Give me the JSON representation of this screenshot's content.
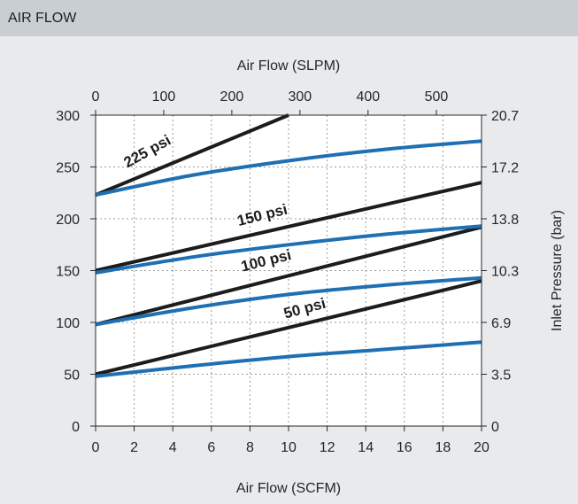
{
  "panel": {
    "title": "AIR FLOW"
  },
  "chart_data": {
    "type": "line",
    "title": "",
    "xlabel": "Air Flow (SCFM)",
    "x2label": "Air Flow (SLPM)",
    "ylabel": "",
    "y2label": "Inlet Pressure (bar)",
    "xlim": [
      0,
      20
    ],
    "ylim": [
      0,
      300
    ],
    "x_ticks": [
      "0",
      "2",
      "4",
      "6",
      "8",
      "10",
      "12",
      "14",
      "16",
      "18",
      "20"
    ],
    "y_ticks": [
      "0",
      "50",
      "100",
      "150",
      "200",
      "250",
      "300"
    ],
    "x2_ticks": [
      {
        "label": "0",
        "x": 0
      },
      {
        "label": "100",
        "x": 3.53
      },
      {
        "label": "200",
        "x": 7.06
      },
      {
        "label": "300",
        "x": 10.59
      },
      {
        "label": "400",
        "x": 14.12
      },
      {
        "label": "500",
        "x": 17.66
      }
    ],
    "y2_ticks": [
      {
        "label": "0",
        "y": 0
      },
      {
        "label": "3.5",
        "y": 50
      },
      {
        "label": "6.9",
        "y": 100
      },
      {
        "label": "10.3",
        "y": 150
      },
      {
        "label": "13.8",
        "y": 200
      },
      {
        "label": "17.2",
        "y": 250
      },
      {
        "label": "20.7",
        "y": 300
      }
    ],
    "grid": true,
    "series": [
      {
        "label": "50 psi",
        "color": "#1c1c1c",
        "x": [
          0,
          20
        ],
        "y": [
          50,
          140
        ]
      },
      {
        "label": "",
        "color": "#1f6fb3",
        "x": [
          0,
          5,
          10,
          15,
          20
        ],
        "y": [
          48,
          58,
          67,
          74,
          81
        ]
      },
      {
        "label": "100 psi",
        "color": "#1c1c1c",
        "x": [
          0,
          20
        ],
        "y": [
          98,
          192
        ]
      },
      {
        "label": "",
        "color": "#1f6fb3",
        "x": [
          0,
          5,
          10,
          15,
          20
        ],
        "y": [
          98,
          114,
          127,
          136,
          143
        ]
      },
      {
        "label": "150 psi",
        "color": "#1c1c1c",
        "x": [
          0,
          20
        ],
        "y": [
          150,
          235
        ]
      },
      {
        "label": "",
        "color": "#1f6fb3",
        "x": [
          0,
          5,
          10,
          15,
          20
        ],
        "y": [
          148,
          163,
          175,
          185,
          193
        ]
      },
      {
        "label": "225 psi",
        "color": "#1c1c1c",
        "x": [
          0,
          10
        ],
        "y": [
          223,
          300
        ]
      },
      {
        "label": "",
        "color": "#1f6fb3",
        "x": [
          0,
          5,
          10,
          15,
          20
        ],
        "y": [
          223,
          242,
          256,
          267,
          275
        ]
      }
    ],
    "annotations": [
      {
        "text": "225 psi",
        "x": 2.8,
        "y": 261,
        "angle": -29
      },
      {
        "text": "150 psi",
        "x": 8.7,
        "y": 199,
        "angle": -14
      },
      {
        "text": "100 psi",
        "x": 8.9,
        "y": 155,
        "angle": -14
      },
      {
        "text": "50 psi",
        "x": 10.9,
        "y": 109,
        "angle": -15
      }
    ]
  }
}
